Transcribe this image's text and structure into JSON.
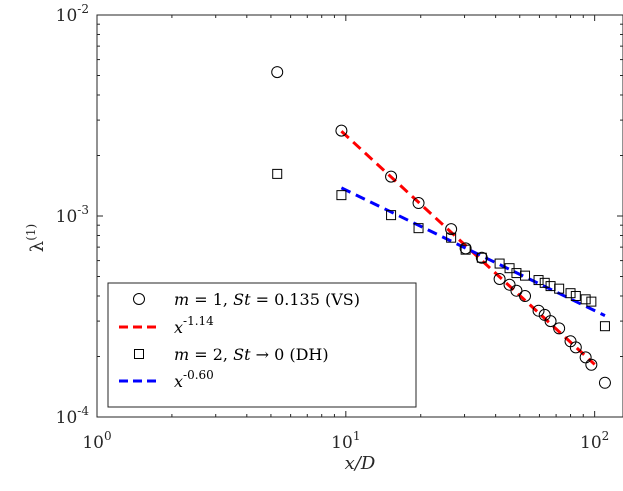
{
  "chart_data": {
    "type": "scatter",
    "xscale": "log",
    "yscale": "log",
    "xlim": [
      1,
      130
    ],
    "ylim": [
      0.0001,
      0.01
    ],
    "xlabel": "x/D",
    "ylabel": "λ(1)",
    "ylabel_base": "λ",
    "ylabel_sup": "(1)",
    "grid": false,
    "legend_position": "bottom-left",
    "x_ticks": [
      {
        "value": 1,
        "base": "10",
        "exp": "0"
      },
      {
        "value": 10,
        "base": "10",
        "exp": "1"
      },
      {
        "value": 100,
        "base": "10",
        "exp": "2"
      }
    ],
    "y_ticks": [
      {
        "value": 0.0001,
        "base": "10",
        "exp": "-4"
      },
      {
        "value": 0.001,
        "base": "10",
        "exp": "-3"
      },
      {
        "value": 0.01,
        "base": "10",
        "exp": "-2"
      }
    ],
    "series": [
      {
        "name": "m = 1, St = 0.135 (VS)",
        "marker": "circle",
        "color": "#000000",
        "points": [
          [
            5.3,
            0.0052
          ],
          [
            9.6,
            0.00266
          ],
          [
            15.2,
            0.00157
          ],
          [
            19.6,
            0.00116
          ],
          [
            26.5,
            0.00086
          ],
          [
            30.3,
            0.00069
          ],
          [
            35.2,
            0.00062
          ],
          [
            41.5,
            0.000486
          ],
          [
            45.5,
            0.000455
          ],
          [
            48.5,
            0.000425
          ],
          [
            52.5,
            0.0004
          ],
          [
            59.5,
            0.000338
          ],
          [
            63,
            0.000322
          ],
          [
            66.5,
            0.0003
          ],
          [
            72,
            0.000276
          ],
          [
            80,
            0.000238
          ],
          [
            84,
            0.000222
          ],
          [
            92,
            0.000198
          ],
          [
            97,
            0.000182
          ],
          [
            110,
            0.000148
          ]
        ]
      },
      {
        "name": "m = 2, St → 0 (DH)",
        "marker": "square",
        "color": "#000000",
        "points": [
          [
            5.3,
            0.00162
          ],
          [
            9.6,
            0.00127
          ],
          [
            15.2,
            0.00101
          ],
          [
            19.6,
            0.00087
          ],
          [
            26.5,
            0.00078
          ],
          [
            30.3,
            0.00068
          ],
          [
            35.2,
            0.00062
          ],
          [
            41.5,
            0.00058
          ],
          [
            45.5,
            0.00055
          ],
          [
            48.5,
            0.00052
          ],
          [
            52.5,
            0.000505
          ],
          [
            59.5,
            0.00048
          ],
          [
            63,
            0.000465
          ],
          [
            66.5,
            0.000448
          ],
          [
            72,
            0.000435
          ],
          [
            80,
            0.000413
          ],
          [
            84,
            0.0004
          ],
          [
            92,
            0.000385
          ],
          [
            97,
            0.000375
          ],
          [
            110,
            0.000283
          ]
        ]
      },
      {
        "name": "x^-1.14",
        "line": "dashed",
        "color": "#ff0000",
        "fit": {
          "coefficient": 0.0348,
          "exponent": -1.14,
          "x_range": [
            9.6,
            100
          ]
        }
      },
      {
        "name": "x^-0.60",
        "line": "dashed",
        "color": "#0000ff",
        "fit": {
          "coefficient": 0.00536,
          "exponent": -0.6,
          "x_range": [
            9.6,
            110
          ]
        }
      }
    ],
    "legend": {
      "entries": [
        {
          "symbol": "circle",
          "math": [
            {
              "t": "m",
              "i": true
            },
            {
              "t": " = 1, "
            },
            {
              "t": "St",
              "i": true
            },
            {
              "t": " = 0.135 (VS)"
            }
          ]
        },
        {
          "symbol": "red-dash",
          "base": "x",
          "sup": "-1.14"
        },
        {
          "symbol": "square",
          "math": [
            {
              "t": "m",
              "i": true
            },
            {
              "t": " = 2, "
            },
            {
              "t": "St",
              "i": true
            },
            {
              "t": " → 0 (DH)"
            }
          ]
        },
        {
          "symbol": "blue-dash",
          "base": "x",
          "sup": "-0.60"
        }
      ]
    }
  }
}
